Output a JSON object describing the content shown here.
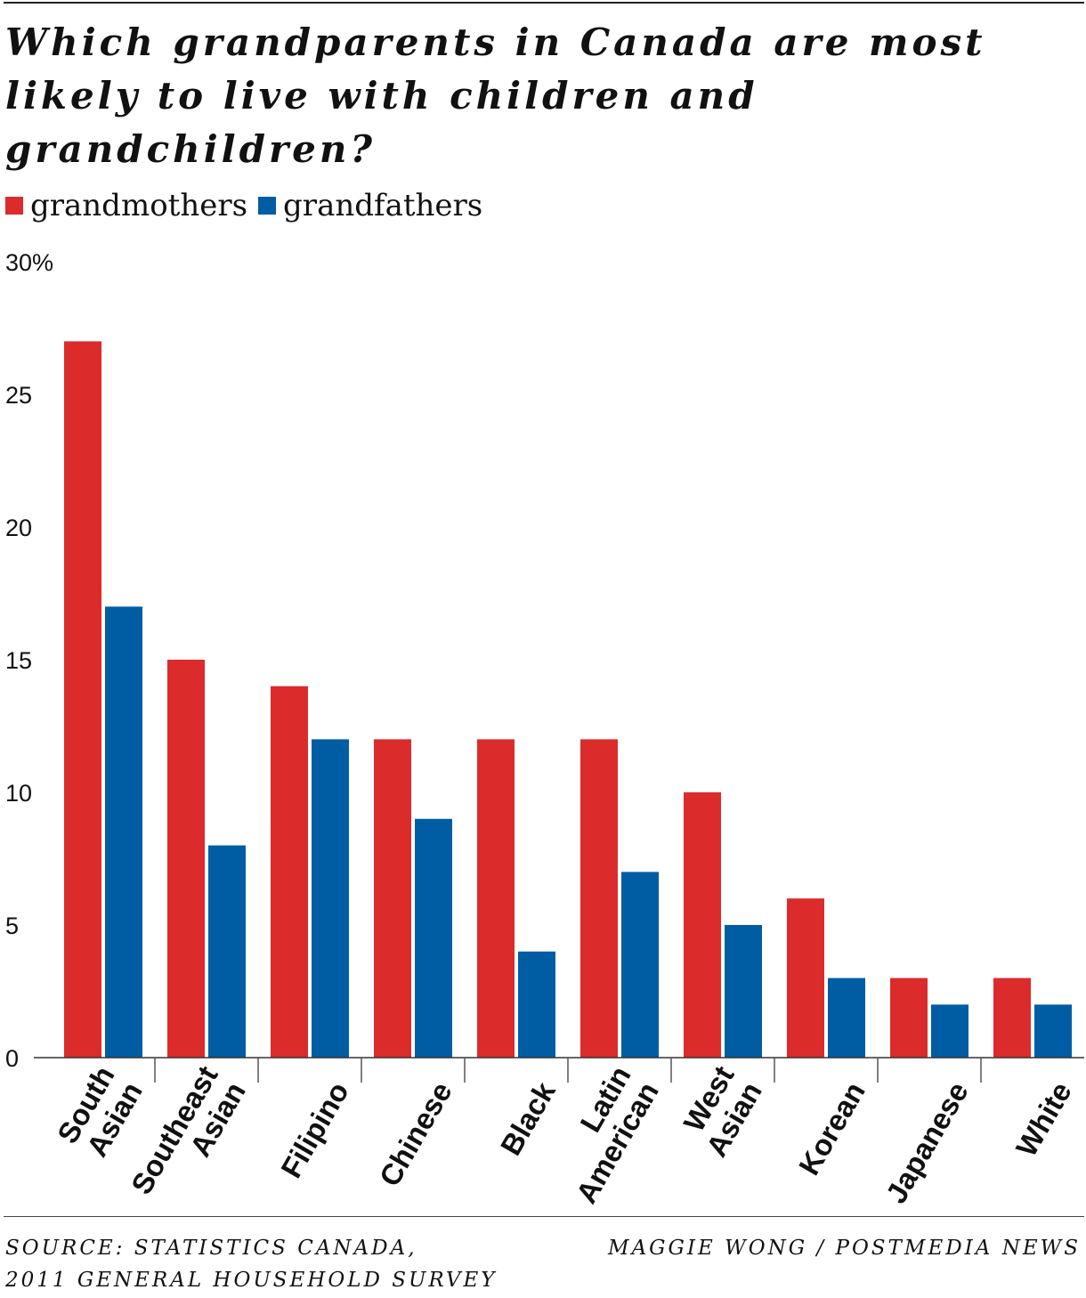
{
  "chart_data": {
    "type": "bar",
    "title_lines": [
      "Which grandparents in Canada are most",
      "likely to live with children and",
      "grandchildren?"
    ],
    "categories": [
      [
        "South",
        "Asian"
      ],
      [
        "Southeast",
        "Asian"
      ],
      [
        "Filipino"
      ],
      [
        "Chinese"
      ],
      [
        "Black"
      ],
      [
        "Latin",
        "American"
      ],
      [
        "West",
        "Asian"
      ],
      [
        "Korean"
      ],
      [
        "Japanese"
      ],
      [
        "White"
      ]
    ],
    "series": [
      {
        "name": "grandmothers",
        "color": "#dc2b2b",
        "values": [
          27,
          15,
          14,
          12,
          12,
          12,
          10,
          6,
          3,
          3
        ]
      },
      {
        "name": "grandfathers",
        "color": "#005da3",
        "values": [
          17,
          8,
          12,
          9,
          4,
          7,
          5,
          3,
          2,
          2
        ]
      }
    ],
    "y_ticks": [
      "0",
      "5",
      "10",
      "15",
      "20",
      "25",
      "30%"
    ],
    "ylim": [
      0,
      30
    ],
    "grid": false,
    "legend_position": "top-left"
  },
  "footer": {
    "source_lines": [
      "SOURCE: STATISTICS CANADA,",
      "2011 GENERAL HOUSEHOLD SURVEY"
    ],
    "credit": "MAGGIE WONG / POSTMEDIA NEWS"
  }
}
